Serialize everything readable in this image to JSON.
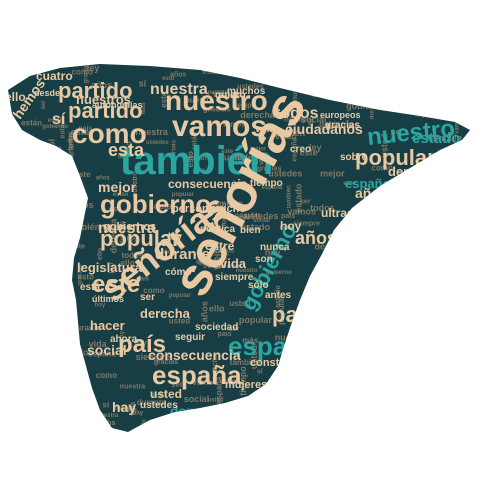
{
  "colors": {
    "background": "#ffffff",
    "map_fill": "#173d45",
    "word_primary": "#e9c9a3",
    "word_accent": "#2aa6a1",
    "word_muted": "#c4a07c"
  },
  "words": [
    {
      "text": "también",
      "tone": "accent"
    },
    {
      "text": "señorías",
      "tone": "primary"
    },
    {
      "text": "señorías",
      "tone": "primary"
    },
    {
      "text": "como",
      "tone": "primary"
    },
    {
      "text": "vamos",
      "tone": "primary"
    },
    {
      "text": "nuestro",
      "tone": "accent"
    },
    {
      "text": "nuestro",
      "tone": "primary"
    },
    {
      "text": "gobierno",
      "tone": "primary"
    },
    {
      "text": "gobierno",
      "tone": "accent"
    },
    {
      "text": "partido",
      "tone": "primary"
    },
    {
      "text": "partido",
      "tone": "primary"
    },
    {
      "text": "popular",
      "tone": "primary"
    },
    {
      "text": "popular",
      "tone": "primary"
    },
    {
      "text": "españa",
      "tone": "primary"
    },
    {
      "text": "españa",
      "tone": "accent"
    },
    {
      "text": "país",
      "tone": "primary"
    },
    {
      "text": "país",
      "tone": "primary"
    },
    {
      "text": "este",
      "tone": "primary"
    },
    {
      "text": "nuestra",
      "tone": "primary"
    },
    {
      "text": "nuestra",
      "tone": "primary"
    },
    {
      "text": "esta",
      "tone": "primary"
    },
    {
      "text": "todos",
      "tone": "primary"
    },
    {
      "text": "ciudadanos",
      "tone": "primary"
    },
    {
      "text": "estado",
      "tone": "accent"
    },
    {
      "text": "años",
      "tone": "primary"
    },
    {
      "text": "años",
      "tone": "primary"
    },
    {
      "text": "durante",
      "tone": "primary"
    },
    {
      "text": "durante",
      "tone": "primary"
    },
    {
      "text": "españoles",
      "tone": "accent"
    },
    {
      "text": "derecha",
      "tone": "primary"
    },
    {
      "text": "derecha",
      "tone": "primary"
    },
    {
      "text": "ultraderecha",
      "tone": "primary"
    },
    {
      "text": "consecuencia",
      "tone": "primary"
    },
    {
      "text": "consecuencia",
      "tone": "primary"
    },
    {
      "text": "democracia",
      "tone": "accent"
    },
    {
      "text": "social",
      "tone": "primary"
    },
    {
      "text": "hay",
      "tone": "primary"
    },
    {
      "text": "legislatura",
      "tone": "primary"
    },
    {
      "text": "mejor",
      "tone": "primary"
    },
    {
      "text": "personas",
      "tone": "primary"
    },
    {
      "text": "gobiernos",
      "tone": "primary"
    },
    {
      "text": "hemos",
      "tone": "primary"
    },
    {
      "text": "cuatro",
      "tone": "primary"
    },
    {
      "text": "ello",
      "tone": "primary"
    },
    {
      "text": "sí",
      "tone": "primary"
    },
    {
      "text": "nuestros",
      "tone": "primary"
    },
    {
      "text": "mucho",
      "tone": "primary"
    },
    {
      "text": "muchos",
      "tone": "primary"
    },
    {
      "text": "hacer",
      "tone": "primary"
    },
    {
      "text": "vida",
      "tone": "primary"
    },
    {
      "text": "entre",
      "tone": "primary"
    },
    {
      "text": "hoy",
      "tone": "primary"
    },
    {
      "text": "mujeres",
      "tone": "primary"
    },
    {
      "text": "constitución",
      "tone": "primary"
    },
    {
      "text": "usted",
      "tone": "primary"
    },
    {
      "text": "ustedes",
      "tone": "primary"
    },
    {
      "text": "antes",
      "tone": "primary"
    },
    {
      "text": "siempre",
      "tone": "primary"
    },
    {
      "text": "está",
      "tone": "primary"
    },
    {
      "text": "creo",
      "tone": "primary"
    },
    {
      "text": "vox",
      "tone": "primary"
    },
    {
      "text": "sociedad",
      "tone": "primary"
    },
    {
      "text": "bien",
      "tone": "primary"
    },
    {
      "text": "política",
      "tone": "primary"
    },
    {
      "text": "sobre",
      "tone": "primary"
    },
    {
      "text": "tiempo",
      "tone": "primary"
    },
    {
      "text": "ley",
      "tone": "primary"
    },
    {
      "text": "gracias",
      "tone": "primary"
    },
    {
      "text": "desde",
      "tone": "primary"
    },
    {
      "text": "autonomías",
      "tone": "primary"
    },
    {
      "text": "últimos",
      "tone": "primary"
    },
    {
      "text": "europeos",
      "tone": "primary"
    },
    {
      "text": "sólo",
      "tone": "primary"
    },
    {
      "text": "nunca",
      "tone": "primary"
    },
    {
      "text": "son",
      "tone": "primary"
    },
    {
      "text": "estos",
      "tone": "primary"
    },
    {
      "text": "cómo",
      "tone": "primary"
    },
    {
      "text": "seguir",
      "tone": "primary"
    },
    {
      "text": "quiero",
      "tone": "primary"
    },
    {
      "text": "ahora",
      "tone": "primary"
    },
    {
      "text": "ser",
      "tone": "primary"
    },
    {
      "text": "fin",
      "tone": "primary"
    }
  ]
}
